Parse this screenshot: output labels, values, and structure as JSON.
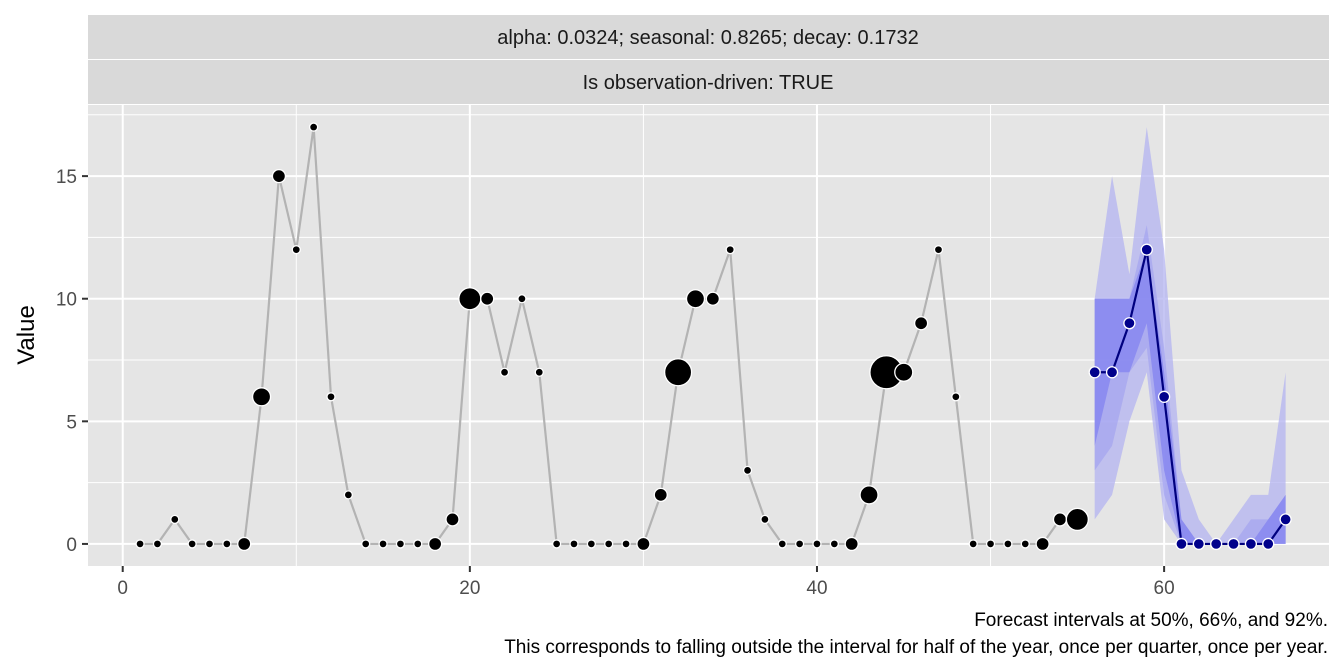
{
  "chart_data": {
    "type": "line",
    "strips": [
      "alpha: 0.0324; seasonal: 0.8265; decay: 0.1732",
      "Is observation-driven: TRUE"
    ],
    "xlabel": "",
    "ylabel": "Value",
    "xlim": [
      -2,
      69.5
    ],
    "ylim": [
      -0.9,
      17.9
    ],
    "x_ticks": [
      0,
      20,
      40,
      60
    ],
    "y_ticks": [
      0,
      5,
      10,
      15
    ],
    "grid": true,
    "caption_lines": [
      "Forecast intervals at 50%, 66%, and 92%.",
      "This corresponds to falling outside the interval for half of the year, once per quarter, once per year."
    ],
    "observed": {
      "x": [
        1,
        2,
        3,
        4,
        5,
        6,
        7,
        8,
        9,
        10,
        11,
        12,
        13,
        14,
        15,
        16,
        17,
        18,
        19,
        20,
        21,
        22,
        23,
        24,
        25,
        26,
        27,
        28,
        29,
        30,
        31,
        32,
        33,
        34,
        35,
        36,
        37,
        38,
        39,
        40,
        41,
        42,
        43,
        44,
        45,
        46,
        47,
        48,
        49,
        50,
        51,
        52,
        53,
        54,
        55
      ],
      "y": [
        0,
        0,
        1,
        0,
        0,
        0,
        0,
        6,
        15,
        12,
        17,
        6,
        2,
        0,
        0,
        0,
        0,
        0,
        1,
        10,
        10,
        7,
        10,
        7,
        0,
        0,
        0,
        0,
        0,
        0,
        2,
        7,
        10,
        10,
        12,
        3,
        1,
        0,
        0,
        0,
        0,
        0,
        2,
        7,
        7,
        9,
        12,
        6,
        0,
        0,
        0,
        0,
        0,
        1,
        1
      ],
      "point_size": [
        1,
        1,
        1,
        1,
        1,
        1,
        2,
        3,
        2,
        1,
        1,
        1,
        1,
        1,
        1,
        1,
        1,
        2,
        2,
        4,
        2,
        1,
        1,
        1,
        1,
        1,
        1,
        1,
        1,
        2,
        2,
        5,
        3,
        2,
        1,
        1,
        1,
        1,
        1,
        1,
        1,
        2,
        3,
        6,
        3,
        2,
        1,
        1,
        1,
        1,
        1,
        1,
        2,
        2,
        4
      ]
    },
    "forecast": {
      "x": [
        56,
        57,
        58,
        59,
        60,
        61,
        62,
        63,
        64,
        65,
        66,
        67
      ],
      "y": [
        7,
        7,
        9,
        12,
        6,
        0,
        0,
        0,
        0,
        0,
        0,
        1
      ],
      "band_92": {
        "lower": [
          1,
          2,
          5,
          7,
          1,
          0,
          0,
          0,
          0,
          0,
          0,
          0
        ],
        "upper": [
          10,
          15,
          11,
          17,
          12,
          3,
          1,
          0,
          1,
          2,
          2,
          7
        ]
      },
      "band_66": {
        "lower": [
          3,
          4,
          7,
          8,
          2,
          0,
          0,
          0,
          0,
          0,
          0,
          0
        ],
        "upper": [
          10,
          10,
          10,
          13,
          8,
          1,
          0,
          0,
          0,
          1,
          1,
          2
        ]
      },
      "band_50": {
        "lower": [
          4,
          7,
          7,
          9,
          3,
          0,
          0,
          0,
          0,
          0,
          0,
          0
        ],
        "upper": [
          10,
          10,
          10,
          12,
          7,
          1,
          0,
          0,
          0,
          0,
          1,
          2
        ]
      }
    },
    "colors": {
      "panel_bg": "#e5e5e5",
      "strip_bg": "#d9d9d9",
      "grid": "#ffffff",
      "observed_line": "#b3b3b3",
      "observed_point": "#000000",
      "forecast_line": "#00007f",
      "forecast_point": "#00008b",
      "band_92": "#b3b3f0",
      "band_66": "#9a9af0",
      "band_50": "#7878f0"
    }
  }
}
